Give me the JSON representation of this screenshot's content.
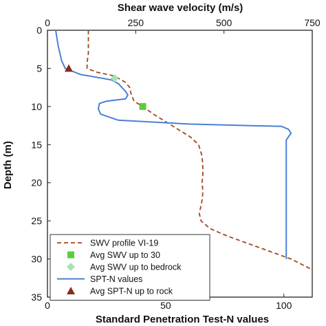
{
  "chart_data": {
    "type": "line",
    "top_axis": {
      "label": "Shear wave velocity (m/s)",
      "range": [
        0,
        750
      ],
      "ticks": [
        0,
        250,
        500,
        750
      ]
    },
    "bottom_axis": {
      "label": "Standard Penetration Test-N values",
      "range": [
        0,
        112
      ],
      "ticks": [
        0,
        50,
        100
      ]
    },
    "y_axis": {
      "label": "Depth (m)",
      "range": [
        0,
        35
      ],
      "inverted": true,
      "ticks": [
        0,
        5,
        10,
        15,
        20,
        25,
        30,
        35
      ]
    },
    "grid": false,
    "legend_position": "bottom-left",
    "series": [
      {
        "name": "SWV profile VI-19",
        "axis": "top",
        "style": "dashed",
        "color": "#a0461e",
        "points": [
          [
            116,
            0
          ],
          [
            116,
            3
          ],
          [
            113,
            4
          ],
          [
            112,
            5
          ],
          [
            140,
            5.5
          ],
          [
            190,
            6
          ],
          [
            220,
            6.8
          ],
          [
            233,
            7.5
          ],
          [
            236,
            8.2
          ],
          [
            245,
            9.3
          ],
          [
            270,
            10
          ],
          [
            300,
            11
          ],
          [
            335,
            12
          ],
          [
            370,
            13
          ],
          [
            405,
            14
          ],
          [
            428,
            15
          ],
          [
            438,
            16.5
          ],
          [
            440,
            18
          ],
          [
            440,
            19
          ],
          [
            438,
            20
          ],
          [
            440,
            21
          ],
          [
            439,
            22
          ],
          [
            435,
            23
          ],
          [
            430,
            24
          ],
          [
            435,
            25
          ],
          [
            460,
            26
          ],
          [
            510,
            27
          ],
          [
            570,
            28
          ],
          [
            630,
            29
          ],
          [
            690,
            30
          ],
          [
            750,
            31.4
          ]
        ]
      },
      {
        "name": "Avg SWV up to 30",
        "axis": "top",
        "style": "marker",
        "marker": "square",
        "color": "#5ccd3c",
        "points": [
          [
            270,
            10
          ]
        ]
      },
      {
        "name": "Avg SWV up to bedrock",
        "axis": "top",
        "style": "marker",
        "marker": "diamond",
        "color": "#a8e2b4",
        "points": [
          [
            190,
            6.3
          ]
        ]
      },
      {
        "name": "SPT-N values",
        "axis": "bottom",
        "style": "solid",
        "color": "#4a7fd4",
        "points": [
          [
            3.5,
            0
          ],
          [
            4.5,
            2
          ],
          [
            6,
            4
          ],
          [
            7.5,
            5
          ],
          [
            14,
            5.8
          ],
          [
            27,
            6.5
          ],
          [
            30,
            7
          ],
          [
            33,
            8
          ],
          [
            34,
            8.5
          ],
          [
            33,
            9
          ],
          [
            25,
            9.3
          ],
          [
            22,
            9.6
          ],
          [
            21.5,
            10.3
          ],
          [
            22.5,
            11
          ],
          [
            30,
            11.8
          ],
          [
            60,
            12.3
          ],
          [
            85,
            12.5
          ],
          [
            99,
            12.6
          ],
          [
            102,
            13
          ],
          [
            103,
            13.5
          ],
          [
            101,
            14.4
          ],
          [
            101,
            20
          ],
          [
            101,
            25
          ],
          [
            101,
            30
          ]
        ]
      },
      {
        "name": "Avg SPT-N up to rock",
        "axis": "bottom",
        "style": "marker",
        "marker": "triangle",
        "color": "#8b2a1a",
        "points": [
          [
            9,
            5
          ]
        ]
      }
    ]
  }
}
